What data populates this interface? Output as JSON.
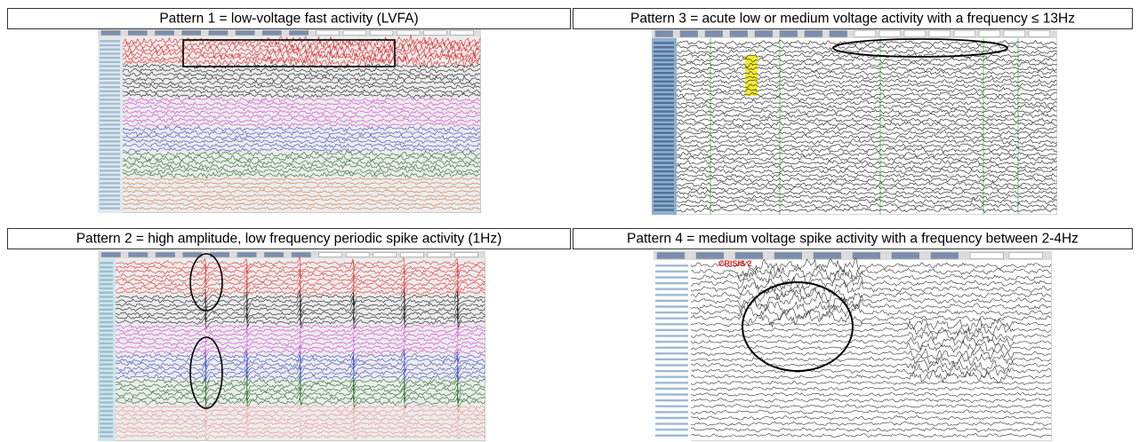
{
  "panels": [
    {
      "title": "Pattern 1 = low-voltage fast activity (LVFA)"
    },
    {
      "title": "Pattern 3 = acute low or medium voltage activity with a frequency ≤ 13Hz"
    },
    {
      "title": "Pattern 2 = high amplitude, low frequency periodic spike activity (1Hz)"
    },
    {
      "title": "Pattern 4 = medium voltage spike activity with a frequency between 2-4Hz",
      "overlay_text": "CRISIS 2"
    }
  ]
}
